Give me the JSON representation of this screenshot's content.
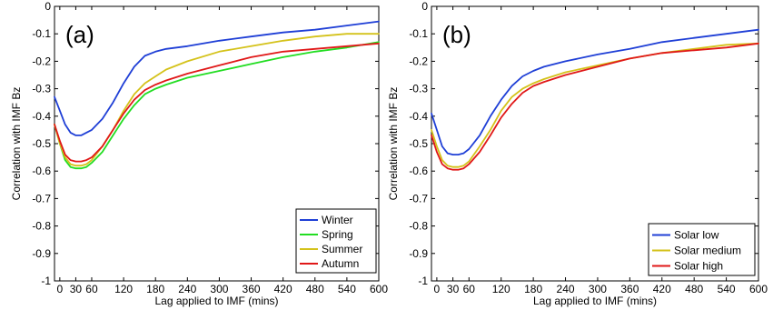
{
  "chart_data": [
    {
      "type": "line",
      "panel_label": "(a)",
      "xlabel": "Lag applied to IMF (mins)",
      "ylabel": "Correlation with IMF Bz",
      "xlim": [
        -10,
        600
      ],
      "ylim": [
        -1,
        0
      ],
      "xticks": [
        0,
        30,
        60,
        120,
        180,
        240,
        300,
        360,
        420,
        480,
        540,
        600
      ],
      "xtick_labels": [
        "0",
        "30",
        "60",
        "120",
        "180",
        "240",
        "300",
        "360",
        "420",
        "480",
        "540",
        "600"
      ],
      "yticks": [
        0,
        -0.1,
        -0.2,
        -0.3,
        -0.4,
        -0.5,
        -0.6,
        -0.7,
        -0.8,
        -0.9,
        -1
      ],
      "ytick_labels": [
        "0",
        "-0.1",
        "-0.2",
        "-0.3",
        "-0.4",
        "-0.5",
        "-0.6",
        "-0.7",
        "-0.8",
        "-0.9",
        "-1"
      ],
      "grid": false,
      "legend_position": "bottom-right",
      "x": [
        -10,
        0,
        10,
        20,
        30,
        40,
        50,
        60,
        80,
        100,
        120,
        140,
        160,
        180,
        200,
        240,
        300,
        360,
        420,
        480,
        540,
        600
      ],
      "series": [
        {
          "name": "Winter",
          "color": "#1f3fd6",
          "values": [
            -0.33,
            -0.38,
            -0.43,
            -0.46,
            -0.47,
            -0.47,
            -0.46,
            -0.45,
            -0.41,
            -0.35,
            -0.28,
            -0.22,
            -0.18,
            -0.165,
            -0.155,
            -0.145,
            -0.125,
            -0.11,
            -0.095,
            -0.085,
            -0.07,
            -0.055
          ]
        },
        {
          "name": "Spring",
          "color": "#22dd22",
          "values": [
            -0.43,
            -0.5,
            -0.56,
            -0.585,
            -0.59,
            -0.59,
            -0.585,
            -0.57,
            -0.53,
            -0.47,
            -0.41,
            -0.36,
            -0.32,
            -0.3,
            -0.285,
            -0.26,
            -0.235,
            -0.21,
            -0.185,
            -0.165,
            -0.15,
            -0.13
          ]
        },
        {
          "name": "Summer",
          "color": "#d4c21a",
          "values": [
            -0.43,
            -0.5,
            -0.55,
            -0.575,
            -0.58,
            -0.58,
            -0.575,
            -0.56,
            -0.51,
            -0.45,
            -0.38,
            -0.32,
            -0.28,
            -0.255,
            -0.23,
            -0.2,
            -0.165,
            -0.145,
            -0.125,
            -0.11,
            -0.1,
            -0.1
          ]
        },
        {
          "name": "Autumn",
          "color": "#e01818",
          "values": [
            -0.43,
            -0.49,
            -0.54,
            -0.56,
            -0.565,
            -0.565,
            -0.56,
            -0.55,
            -0.51,
            -0.45,
            -0.39,
            -0.34,
            -0.305,
            -0.285,
            -0.27,
            -0.245,
            -0.215,
            -0.185,
            -0.165,
            -0.155,
            -0.145,
            -0.135
          ]
        }
      ]
    },
    {
      "type": "line",
      "panel_label": "(b)",
      "xlabel": "Lag applied to IMF (mins)",
      "ylabel": "Correlation with IMF Bz",
      "xlim": [
        -10,
        600
      ],
      "ylim": [
        -1,
        0
      ],
      "xticks": [
        0,
        30,
        60,
        120,
        180,
        240,
        300,
        360,
        420,
        480,
        540,
        600
      ],
      "xtick_labels": [
        "0",
        "30",
        "60",
        "120",
        "180",
        "240",
        "300",
        "360",
        "420",
        "480",
        "540",
        "600"
      ],
      "yticks": [
        0,
        -0.1,
        -0.2,
        -0.3,
        -0.4,
        -0.5,
        -0.6,
        -0.7,
        -0.8,
        -0.9,
        -1
      ],
      "ytick_labels": [
        "0",
        "-0.1",
        "-0.2",
        "-0.3",
        "-0.4",
        "-0.5",
        "-0.6",
        "-0.7",
        "-0.8",
        "-0.9",
        "-1"
      ],
      "grid": false,
      "legend_position": "bottom-right",
      "x": [
        -10,
        0,
        10,
        20,
        30,
        40,
        50,
        60,
        80,
        100,
        120,
        140,
        160,
        180,
        200,
        240,
        300,
        360,
        420,
        480,
        540,
        600
      ],
      "series": [
        {
          "name": "Solar low",
          "color": "#1f3fd6",
          "values": [
            -0.39,
            -0.45,
            -0.51,
            -0.535,
            -0.54,
            -0.54,
            -0.535,
            -0.52,
            -0.47,
            -0.4,
            -0.34,
            -0.29,
            -0.255,
            -0.235,
            -0.22,
            -0.2,
            -0.175,
            -0.155,
            -0.13,
            -0.115,
            -0.1,
            -0.085
          ]
        },
        {
          "name": "Solar medium",
          "color": "#d4c21a",
          "values": [
            -0.45,
            -0.51,
            -0.56,
            -0.58,
            -0.585,
            -0.585,
            -0.58,
            -0.565,
            -0.51,
            -0.45,
            -0.38,
            -0.33,
            -0.3,
            -0.28,
            -0.265,
            -0.24,
            -0.215,
            -0.19,
            -0.17,
            -0.155,
            -0.14,
            -0.135
          ]
        },
        {
          "name": "Solar high",
          "color": "#e01818",
          "values": [
            -0.47,
            -0.53,
            -0.575,
            -0.59,
            -0.595,
            -0.595,
            -0.59,
            -0.575,
            -0.53,
            -0.47,
            -0.405,
            -0.355,
            -0.315,
            -0.29,
            -0.275,
            -0.25,
            -0.22,
            -0.19,
            -0.17,
            -0.16,
            -0.15,
            -0.135
          ]
        }
      ]
    }
  ]
}
